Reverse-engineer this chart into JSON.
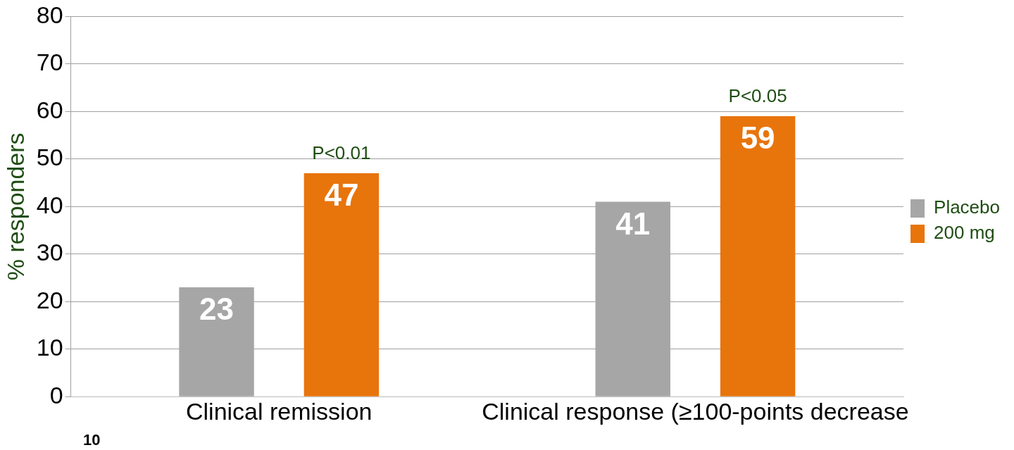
{
  "chart_data": {
    "type": "bar",
    "ylabel": "% responders",
    "categories": [
      "Clinical remission",
      "Clinical response (≥100-points decrease"
    ],
    "series": [
      {
        "name": "Placebo",
        "color": "#a6a6a6",
        "values": [
          23,
          41
        ]
      },
      {
        "name": "200 mg",
        "color": "#e8740c",
        "values": [
          47,
          59
        ]
      }
    ],
    "ylim": [
      0,
      80
    ],
    "yticks": [
      0,
      10,
      20,
      30,
      40,
      50,
      60,
      70,
      80
    ],
    "grid": "y",
    "legend": "right",
    "data_labels": true,
    "annotations": [
      "P<0.01",
      "P<0.05",
      "10"
    ]
  }
}
